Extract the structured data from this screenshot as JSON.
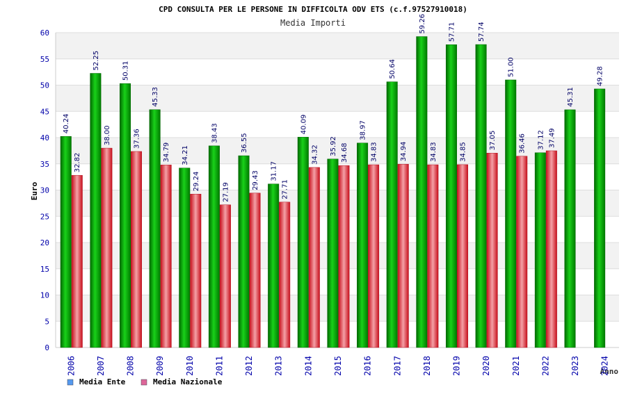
{
  "chart_data": {
    "type": "bar",
    "title": "CPD CONSULTA PER LE PERSONE IN DIFFICOLTA ODV ETS (c.f.97527910018)",
    "subtitle": "Media Importi",
    "xlabel": "Anno",
    "ylabel": "Euro",
    "ylim": [
      0,
      60
    ],
    "yticks": [
      0,
      5,
      10,
      15,
      20,
      25,
      30,
      35,
      40,
      45,
      50,
      55,
      60
    ],
    "grid": true,
    "legend_position": "bottom-left",
    "categories": [
      "2006",
      "2007",
      "2008",
      "2009",
      "2010",
      "2011",
      "2012",
      "2013",
      "2014",
      "2015",
      "2016",
      "2017",
      "2018",
      "2019",
      "2020",
      "2021",
      "2022",
      "2023",
      "2024"
    ],
    "series": [
      {
        "name": "Media Ente",
        "color": "#0a9e0a",
        "legend_color": "#5599ee",
        "values": [
          40.24,
          52.25,
          50.31,
          45.33,
          34.21,
          38.43,
          36.55,
          31.17,
          40.09,
          35.92,
          38.97,
          50.64,
          59.26,
          57.71,
          57.74,
          51.0,
          37.12,
          45.31,
          49.28
        ],
        "labels": [
          "40.24",
          "52.25",
          "50.31",
          "45.33",
          "34.21",
          "38.43",
          "36.55",
          "31.17",
          "40.09",
          "35.92",
          "38.97",
          "50.64",
          "59.26",
          "57.71",
          "57.74",
          "51.00",
          "37.12",
          "45.31",
          "49.28"
        ]
      },
      {
        "name": "Media Nazionale",
        "color": "#e0303a",
        "legend_color": "#dd6699",
        "values": [
          32.82,
          38.0,
          37.36,
          34.79,
          29.24,
          27.19,
          29.43,
          27.71,
          34.32,
          34.68,
          34.83,
          34.94,
          34.83,
          34.85,
          37.05,
          36.46,
          37.49,
          null,
          null
        ],
        "labels": [
          "32.82",
          "38.00",
          "37.36",
          "34.79",
          "29.24",
          "27.19",
          "29.43",
          "27.71",
          "34.32",
          "34.68",
          "34.83",
          "34.94",
          "34.83",
          "34.85",
          "37.05",
          "36.46",
          "37.49",
          null,
          null
        ]
      }
    ]
  }
}
